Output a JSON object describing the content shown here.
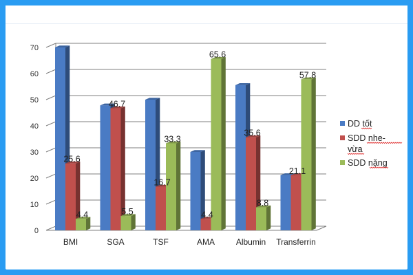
{
  "chart_data": {
    "type": "bar",
    "categories": [
      "BMI",
      "SGA",
      "TSF",
      "AMA",
      "Albumin",
      "Transferrin"
    ],
    "series": [
      {
        "name": "DD tốt",
        "values": [
          70,
          47.8,
          50,
          30,
          55.6,
          21.1
        ],
        "color": "#4a7bc4"
      },
      {
        "name": "SDD nhe-vừa",
        "values": [
          25.6,
          46.7,
          16.7,
          4.4,
          35.6,
          21.1
        ],
        "color": "#c0504d"
      },
      {
        "name": "SDD nặng",
        "values": [
          4.4,
          5.5,
          33.3,
          65.6,
          8.8,
          57.8
        ],
        "color": "#9bbb59"
      }
    ],
    "data_labels": [
      {
        "series": 1,
        "category": 0,
        "text": "25.6"
      },
      {
        "series": 2,
        "category": 0,
        "text": "4.4"
      },
      {
        "series": 1,
        "category": 1,
        "text": "46.7"
      },
      {
        "series": 2,
        "category": 1,
        "text": "5.5"
      },
      {
        "series": 1,
        "category": 2,
        "text": "16.7"
      },
      {
        "series": 2,
        "category": 2,
        "text": "33.3"
      },
      {
        "series": 1,
        "category": 3,
        "text": "4.4"
      },
      {
        "series": 2,
        "category": 3,
        "text": "65.6"
      },
      {
        "series": 1,
        "category": 4,
        "text": "35.6"
      },
      {
        "series": 2,
        "category": 4,
        "text": "8.8"
      },
      {
        "series": 1,
        "category": 5,
        "text": "21.1"
      },
      {
        "series": 2,
        "category": 5,
        "text": "57.8"
      }
    ],
    "yticks": [
      0,
      10,
      20,
      30,
      40,
      50,
      60,
      70
    ],
    "ylim": [
      0,
      70
    ],
    "legend": {
      "position": "right",
      "items": [
        {
          "lines": [
            "DD tốt"
          ]
        },
        {
          "lines": [
            "SDD nhe-",
            "vừa"
          ]
        },
        {
          "lines": [
            "SDD nặng"
          ]
        }
      ]
    },
    "grid": true,
    "view": "3d",
    "title": "",
    "xlabel": "",
    "ylabel": ""
  },
  "theme": {
    "frame_color": "#2a9cf2",
    "grid_color": "#7f7f7f",
    "axis_color": "#7f7f7f"
  }
}
